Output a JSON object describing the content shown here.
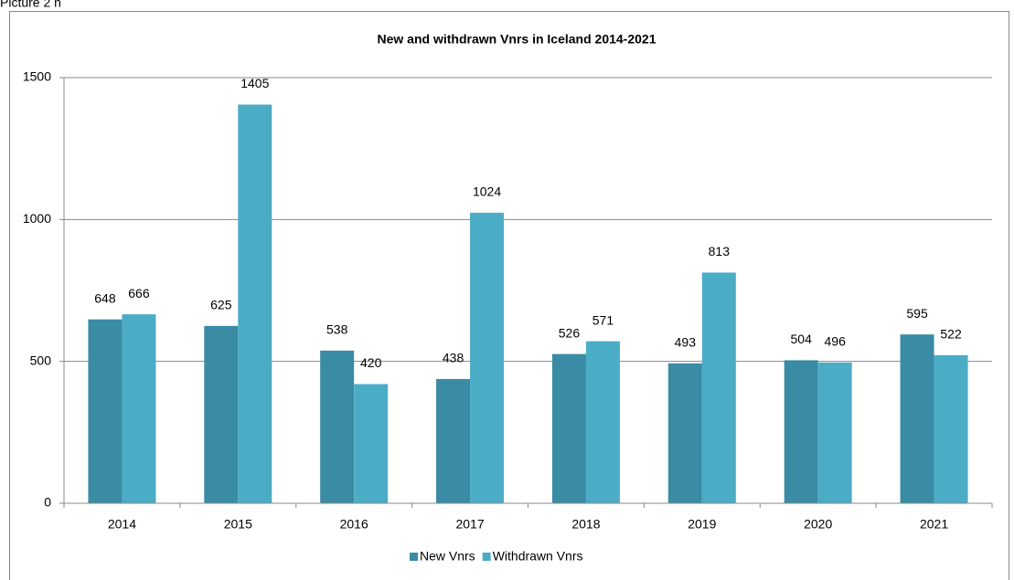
{
  "caption": "Picture 2 n",
  "chart_data": {
    "type": "bar",
    "title": "New and withdrawn Vnrs in Iceland 2014-2021",
    "categories": [
      "2014",
      "2015",
      "2016",
      "2017",
      "2018",
      "2019",
      "2020",
      "2021"
    ],
    "series": [
      {
        "name": "New Vnrs",
        "color": "#3a8ba4",
        "values": [
          648,
          625,
          538,
          438,
          526,
          493,
          504,
          595
        ]
      },
      {
        "name": "Withdrawn Vnrs",
        "color": "#4bacc6",
        "values": [
          666,
          1405,
          420,
          1024,
          571,
          813,
          496,
          522
        ]
      }
    ],
    "ylim": [
      0,
      1500
    ],
    "yticks": [
      0,
      500,
      1000,
      1500
    ],
    "grid": true,
    "legend": "bottom"
  }
}
